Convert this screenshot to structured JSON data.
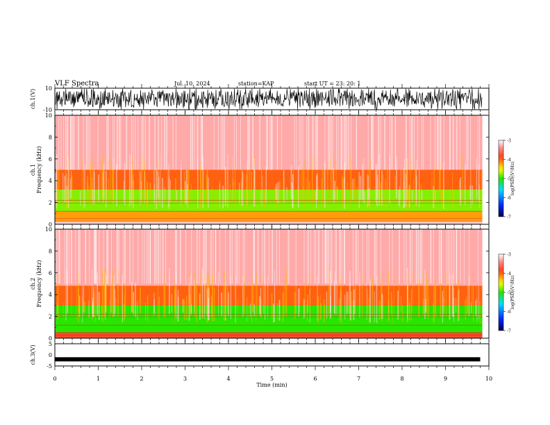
{
  "header": {
    "title": "VLF Spectra",
    "date": "Jul. 10, 2024",
    "station": "station=KAP",
    "start": "start UT =  23: 20: 1"
  },
  "colors": {
    "spectrum_high": "#ffffff",
    "spectrum_mid": "#ff2a1a",
    "spectrum_low": "#22e000",
    "waveform": "#000000"
  },
  "chart_data": [
    {
      "id": "ch1-waveform",
      "type": "line",
      "ylabel": "ch.1(V)",
      "ylim": [
        -10,
        10
      ],
      "yticks": [
        "10",
        "-10"
      ],
      "xlim": [
        0,
        10
      ],
      "description_of_signal": "dense broadband oscillation filling most of range"
    },
    {
      "id": "ch1-spectrogram",
      "type": "heatmap",
      "ylabel": "ch.1\nFrequency (kHz)",
      "ylabel_line1": "ch.1",
      "ylabel_line2": "Frequency (kHz)",
      "ylim": [
        0,
        10
      ],
      "yticks": [
        "0",
        "2",
        "4",
        "6",
        "8",
        "10"
      ],
      "xlim": [
        0,
        10
      ],
      "colorbar": {
        "label": "log(PSD)(V²/Hz)",
        "range": [
          -7,
          -3
        ],
        "ticks": [
          "-3",
          "-4",
          "-5",
          "-6",
          "-7"
        ]
      },
      "band_levels": [
        {
          "freq_khz": [
            0,
            0.3
          ],
          "log_psd": -3.2
        },
        {
          "freq_khz": [
            0.3,
            1.2
          ],
          "log_psd": -4.2
        },
        {
          "freq_khz": [
            1.2,
            3.2
          ],
          "log_psd": -4.8
        },
        {
          "freq_khz": [
            3.2,
            5.0
          ],
          "log_psd": -4.0
        },
        {
          "freq_khz": [
            5.0,
            10
          ],
          "log_psd": -3.3
        }
      ]
    },
    {
      "id": "ch2-spectrogram",
      "type": "heatmap",
      "ylabel_line1": "ch.2",
      "ylabel_line2": "Frequency (kHz)",
      "ylim": [
        0,
        10
      ],
      "yticks": [
        "0",
        "2",
        "4",
        "6",
        "8",
        "10"
      ],
      "xlim": [
        0,
        10
      ],
      "colorbar": {
        "label": "log(PSD)(V²/Hz)",
        "range": [
          -7,
          -3
        ],
        "ticks": [
          "-3",
          "-4",
          "-5",
          "-6",
          "-7"
        ]
      },
      "band_levels": [
        {
          "freq_khz": [
            0,
            0.5
          ],
          "log_psd": -3.8
        },
        {
          "freq_khz": [
            0.5,
            3.0
          ],
          "log_psd": -5.0
        },
        {
          "freq_khz": [
            3.0,
            4.8
          ],
          "log_psd": -4.0
        },
        {
          "freq_khz": [
            4.8,
            10
          ],
          "log_psd": -3.3
        }
      ]
    },
    {
      "id": "ch3-waveform",
      "type": "line",
      "ylabel": "ch.3(V)",
      "ylim": [
        -5,
        5
      ],
      "yticks": [
        "5",
        "0",
        "-5"
      ],
      "xlim": [
        0,
        10
      ],
      "xlabel": "Time (min)",
      "xticks": [
        "0",
        "1",
        "2",
        "3",
        "4",
        "5",
        "6",
        "7",
        "8",
        "9",
        "10"
      ],
      "level_v": -2,
      "data_end_min": 9.8
    }
  ]
}
